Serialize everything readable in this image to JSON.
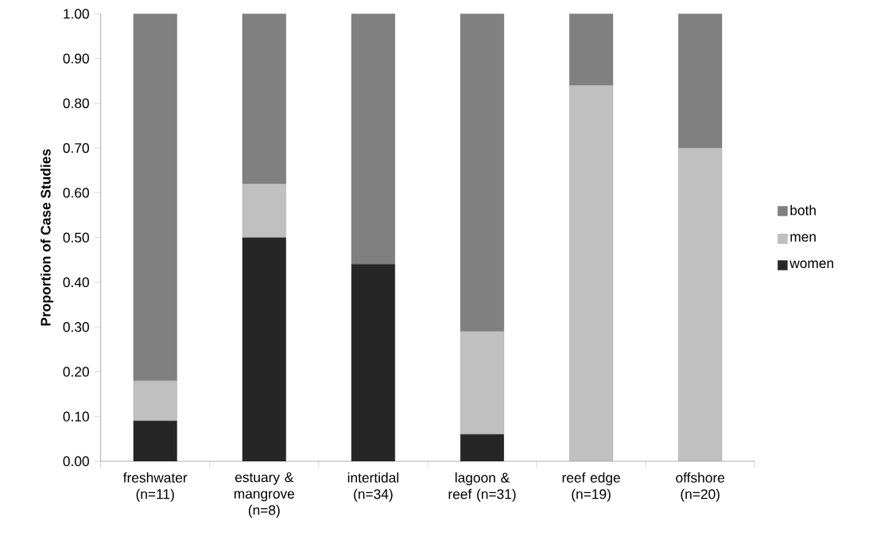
{
  "chart_data": {
    "type": "bar",
    "stacked": true,
    "ylabel": "**Proportion of Case Studies**",
    "categories": [
      "freshwater (n=11)",
      "estuary & mangrove (n=8)",
      "intertidal (n=34)",
      "lagoon & reef (n=31)",
      "reef edge (n=19)",
      "offshore (n=20)"
    ],
    "series": [
      {
        "name": "women",
        "color": "#262626",
        "values": [
          0.09,
          0.5,
          0.44,
          0.06,
          0,
          0
        ]
      },
      {
        "name": "men",
        "color": "#c0c0c0",
        "values": [
          0.09,
          0.12,
          0,
          0.23,
          0.84,
          0.7
        ]
      },
      {
        "name": "both",
        "color": "#808080",
        "values": [
          0.82,
          0.38,
          0.56,
          0.71,
          0.16,
          0.3
        ]
      }
    ],
    "ylim": [
      0,
      1
    ],
    "yticks": [
      {
        "value": 0,
        "label": "0.00"
      },
      {
        "value": 0.1,
        "label": "0.10"
      },
      {
        "value": 0.2,
        "label": "0.20"
      },
      {
        "value": 0.3,
        "label": "0.30"
      },
      {
        "value": 0.4,
        "label": "0.40"
      },
      {
        "value": 0.5,
        "label": "0.50"
      },
      {
        "value": 0.6,
        "label": "0.60"
      },
      {
        "value": 0.7,
        "label": "0.70"
      },
      {
        "value": 0.8,
        "label": "0.80"
      },
      {
        "value": 0.9,
        "label": "0.90"
      },
      {
        "value": 1,
        "label": "1.00"
      }
    ],
    "grid": false,
    "legend": "right"
  }
}
